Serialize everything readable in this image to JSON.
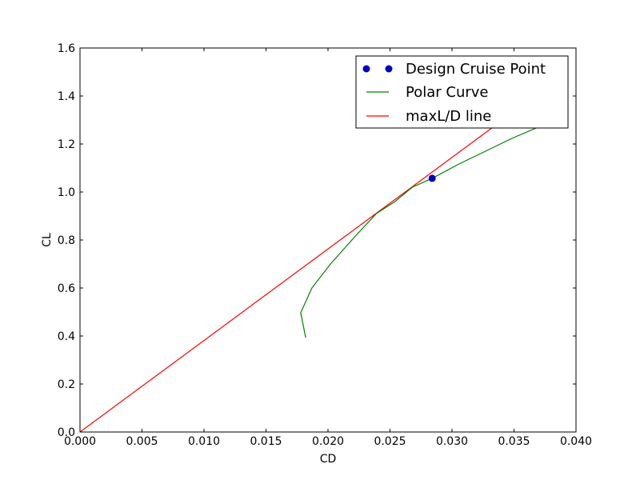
{
  "chart_data": {
    "type": "line",
    "title": "",
    "xlabel": "CD",
    "ylabel": "CL",
    "xlim": [
      0.0,
      0.04
    ],
    "ylim": [
      0.0,
      1.6
    ],
    "x_ticks": [
      "0.000",
      "0.005",
      "0.010",
      "0.015",
      "0.020",
      "0.025",
      "0.030",
      "0.035",
      "0.040"
    ],
    "y_ticks": [
      "0.0",
      "0.2",
      "0.4",
      "0.6",
      "0.8",
      "1.0",
      "1.2",
      "1.4",
      "1.6"
    ],
    "grid": false,
    "legend_position": "top-right",
    "series": [
      {
        "name": "Design Cruise Point",
        "kind": "markers",
        "color": "#0000bf",
        "x": [
          0.0284
        ],
        "y": [
          1.057
        ]
      },
      {
        "name": "Polar Curve",
        "kind": "line",
        "color": "#008000",
        "x": [
          0.0182,
          0.0178,
          0.0187,
          0.0202,
          0.0221,
          0.0239,
          0.0254,
          0.0268,
          0.0284,
          0.0305,
          0.0333,
          0.0349,
          0.0368
        ],
        "y": [
          0.393,
          0.497,
          0.6,
          0.7,
          0.81,
          0.91,
          0.96,
          1.02,
          1.057,
          1.115,
          1.185,
          1.225,
          1.267
        ]
      },
      {
        "name": "maxL/D line",
        "kind": "line",
        "color": "#ff0000",
        "x": [
          0.0,
          0.0333
        ],
        "y": [
          0.0,
          1.27
        ]
      }
    ]
  }
}
